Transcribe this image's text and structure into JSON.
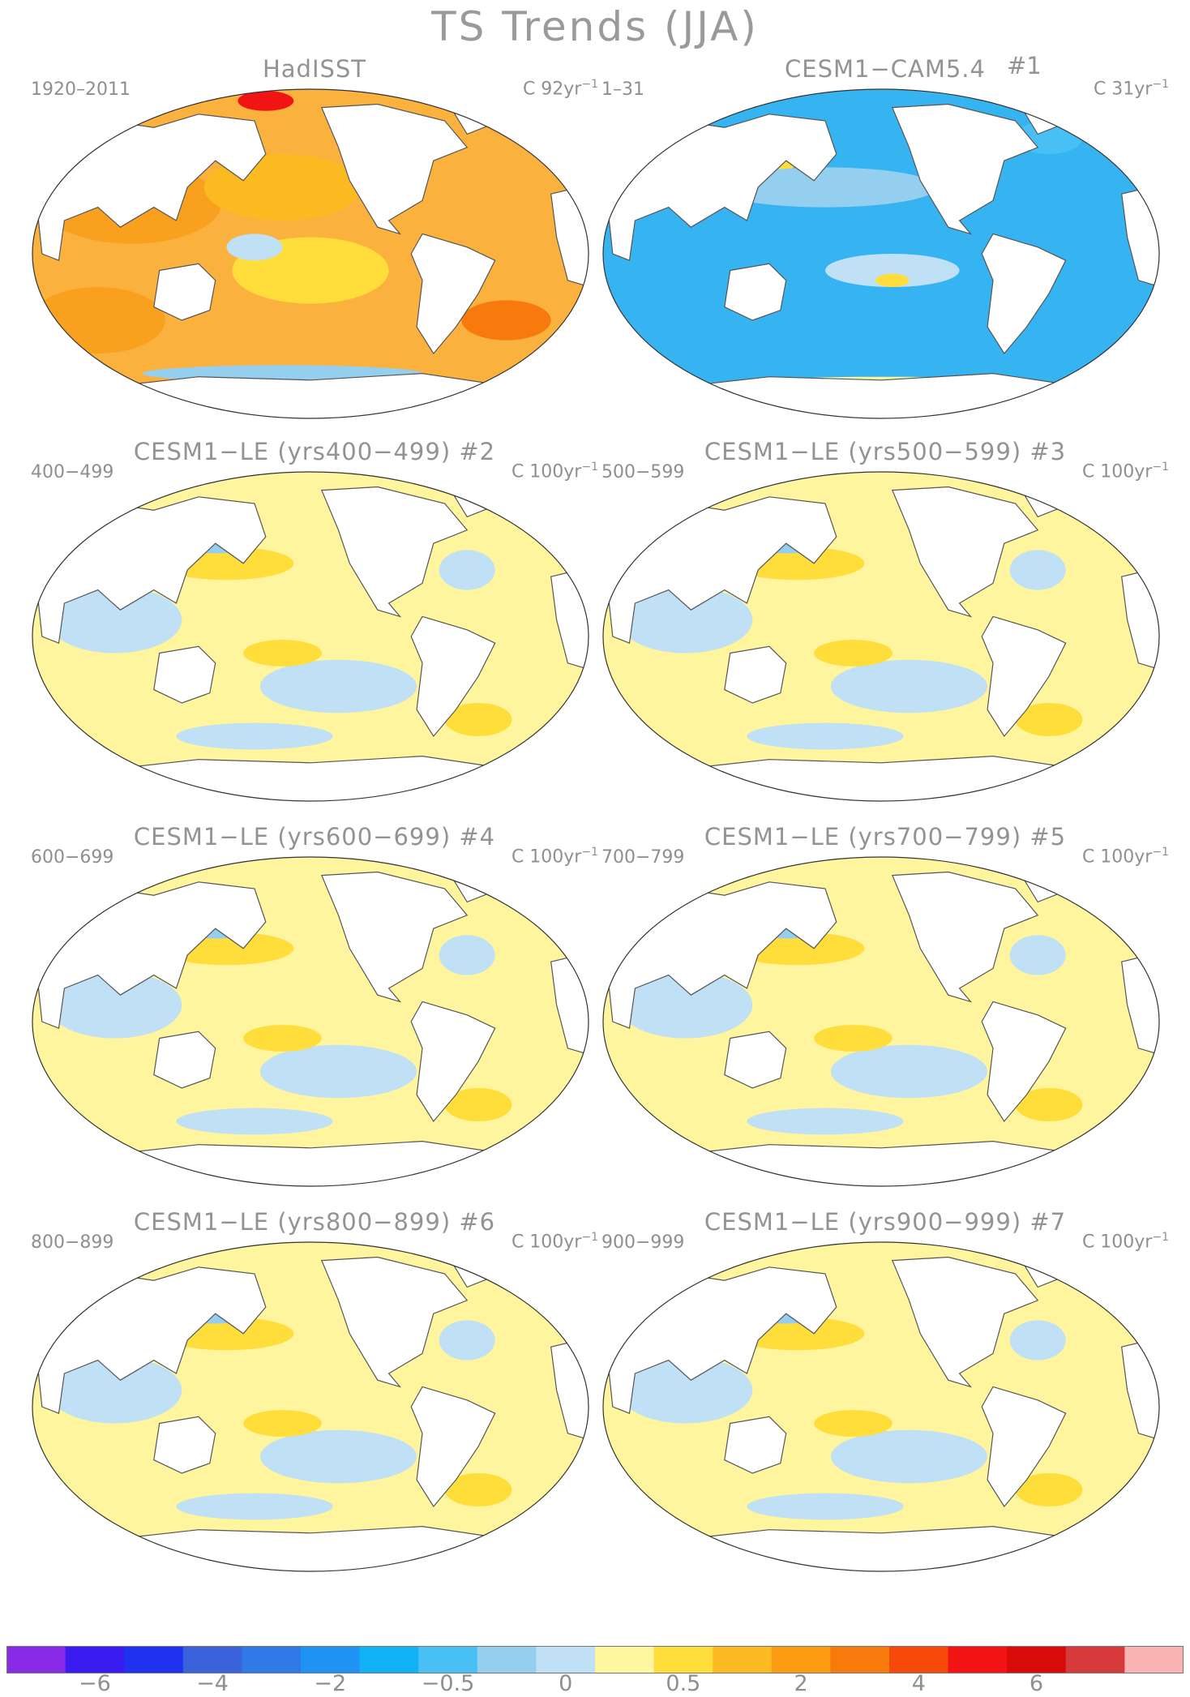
{
  "title": "TS Trends (JJA)",
  "panels": [
    {
      "title": "HadISST",
      "number": "",
      "period": "1920–2011",
      "units_prefix": "C",
      "units": "92yr",
      "units_exp": "−1",
      "fill": "#fbb13e",
      "pattern": "warm"
    },
    {
      "title": "CESM1−CAM5.4",
      "number": "#1",
      "period": "1–31",
      "units_prefix": "C",
      "units": "31yr",
      "units_exp": "−1",
      "fill": "#36b4f2",
      "pattern": "cool"
    },
    {
      "title": "CESM1−LE (yrs400−499)",
      "number": "#2",
      "period": "400−499",
      "units_prefix": "C",
      "units": "100yr",
      "units_exp": "−1",
      "fill": "#fff59e",
      "pattern": "mixed"
    },
    {
      "title": "CESM1−LE (yrs500−599)",
      "number": "#3",
      "period": "500−599",
      "units_prefix": "C",
      "units": "100yr",
      "units_exp": "−1",
      "fill": "#fff59e",
      "pattern": "mixed"
    },
    {
      "title": "CESM1−LE (yrs600−699)",
      "number": "#4",
      "period": "600−699",
      "units_prefix": "C",
      "units": "100yr",
      "units_exp": "−1",
      "fill": "#fff59e",
      "pattern": "mixed"
    },
    {
      "title": "CESM1−LE (yrs700−799)",
      "number": "#5",
      "period": "700−799",
      "units_prefix": "C",
      "units": "100yr",
      "units_exp": "−1",
      "fill": "#fff59e",
      "pattern": "mixed"
    },
    {
      "title": "CESM1−LE (yrs800−899)",
      "number": "#6",
      "period": "800−899",
      "units_prefix": "C",
      "units": "100yr",
      "units_exp": "−1",
      "fill": "#fff59e",
      "pattern": "mixed"
    },
    {
      "title": "CESM1−LE (yrs900−999)",
      "number": "#7",
      "period": "900−999",
      "units_prefix": "C",
      "units": "100yr",
      "units_exp": "−1",
      "fill": "#fff59e",
      "pattern": "mixed"
    }
  ],
  "colorbar": {
    "colors": [
      "#8a2be8",
      "#3a1cf0",
      "#1e32f0",
      "#3a62dc",
      "#2f7ae8",
      "#1f93f5",
      "#12b0f5",
      "#48c0f5",
      "#94cff0",
      "#bfe0f5",
      "#fff7a0",
      "#ffdd3a",
      "#fbbb20",
      "#fa9b12",
      "#f87a0c",
      "#f74a0a",
      "#f21414",
      "#d90a0a",
      "#d63a3a",
      "#f9b3b3"
    ],
    "labels": [
      "−6",
      "−4",
      "−2",
      "−0.5",
      "0",
      "0.5",
      "2",
      "4",
      "6"
    ],
    "label_positions": [
      2,
      4,
      6,
      8,
      10,
      12,
      14,
      16,
      18
    ]
  }
}
